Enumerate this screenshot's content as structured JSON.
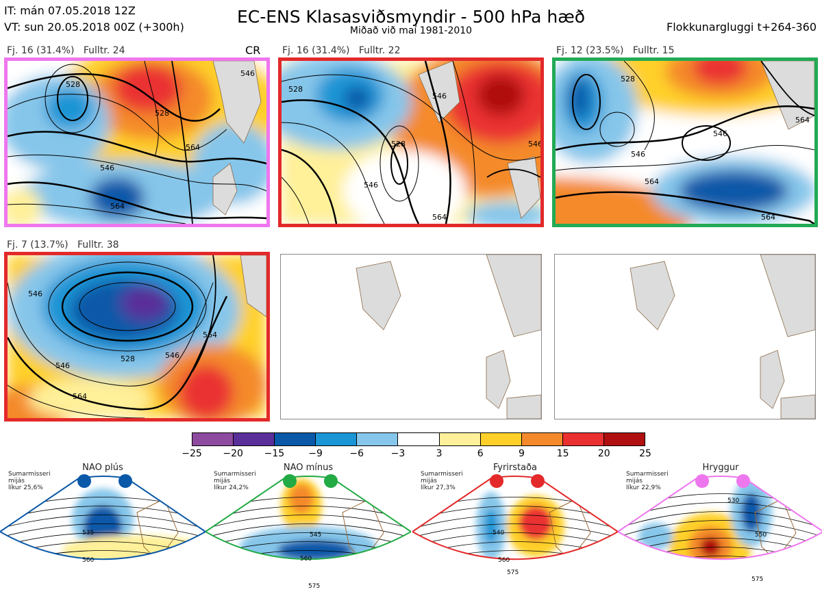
{
  "header": {
    "it": "IT: mán 07.05.2018 12Z",
    "vt": "VT: sun 20.05.2018 00Z  (+300h)",
    "title": "EC-ENS Klasasviðsmyndir - 500 hPa hæð",
    "subtitle": "Miðað við maí 1981-2010",
    "window": "Flokkunargluggi t+264-360"
  },
  "panels": [
    {
      "label": "Fj. 16 (31.4%)   Fulltr. 24",
      "tag": "CR",
      "border": "#ee77ee",
      "contours": [
        "546",
        "528",
        "528",
        "546",
        "564",
        "564"
      ]
    },
    {
      "label": "Fj. 16 (31.4%)   Fulltr. 22",
      "border": "#e3292a",
      "contours": [
        "528",
        "528",
        "546",
        "546",
        "564",
        "546"
      ]
    },
    {
      "label": "Fj. 12 (23.5%)   Fulltr. 15",
      "border": "#22aa55",
      "contours": [
        "528",
        "546",
        "546",
        "564",
        "564",
        "564"
      ]
    },
    {
      "label": "Fj. 7 (13.7%)   Fulltr. 38",
      "border": "#e3292a",
      "contours": [
        "546",
        "528",
        "546",
        "564",
        "564",
        "546"
      ]
    }
  ],
  "colorbar": {
    "ticks": [
      "−25",
      "−20",
      "−15",
      "−9",
      "−6",
      "−3",
      "3",
      "6",
      "9",
      "15",
      "20",
      "25"
    ],
    "colors": [
      "#8e4a9f",
      "#5a2f9a",
      "#0a58a8",
      "#1a95d5",
      "#86c6ea",
      "#ffffff",
      "#fff09a",
      "#ffd02a",
      "#f48a2c",
      "#ea3030",
      "#b01010"
    ]
  },
  "regimes": [
    {
      "name": "NAO plús",
      "info": [
        "Sumarmisseri",
        "mijás",
        "líkur 25,6%"
      ],
      "color": "#0a58a8",
      "contours": [
        "535",
        "560"
      ]
    },
    {
      "name": "NAO mínus",
      "info": [
        "Sumarmisseri",
        "mijás",
        "líkur 24,2%"
      ],
      "color": "#22aa44",
      "contours": [
        "545",
        "560",
        "575"
      ]
    },
    {
      "name": "Fyrirstaða",
      "info": [
        "Sumarmisseri",
        "mijás",
        "líkur 27,3%"
      ],
      "color": "#e3292a",
      "contours": [
        "540",
        "560",
        "575"
      ]
    },
    {
      "name": "Hryggur",
      "info": [
        "Sumarmisseri",
        "mijás",
        "líkur 22,9%"
      ],
      "color": "#ee77ee",
      "contours": [
        "530",
        "550",
        "575"
      ]
    }
  ]
}
